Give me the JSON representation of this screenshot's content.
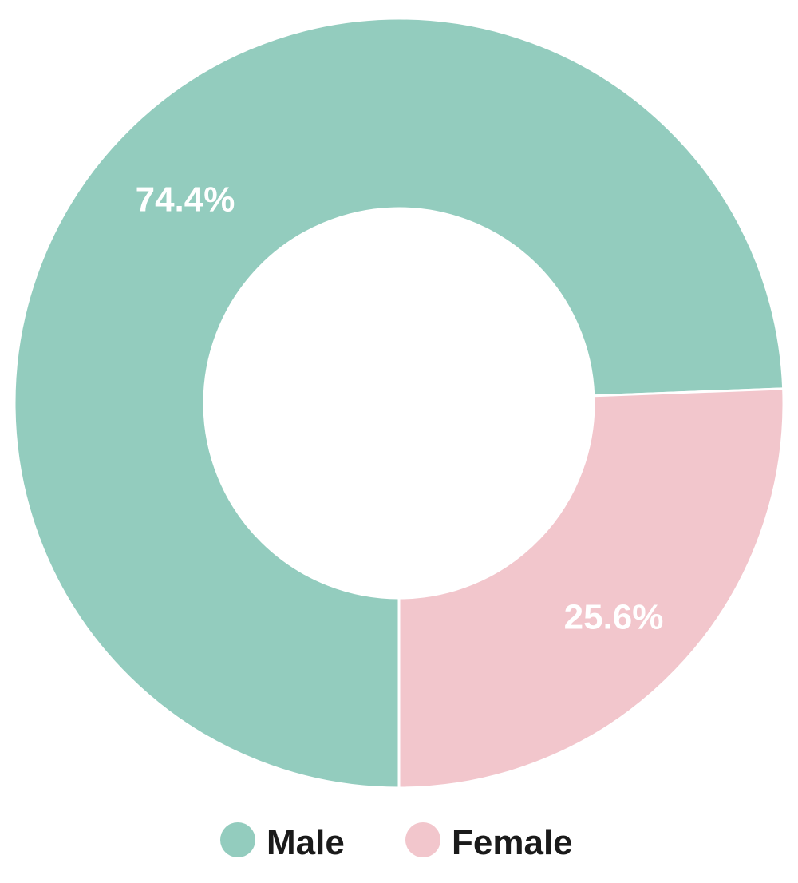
{
  "chart_data": {
    "type": "pie",
    "donut": true,
    "legend_position": "bottom",
    "categories": [
      "Male",
      "Female"
    ],
    "values": [
      74.4,
      25.6
    ],
    "value_labels": [
      "74.4%",
      "25.6%"
    ],
    "colors": [
      "#93ccbe",
      "#f2c6cc"
    ]
  }
}
